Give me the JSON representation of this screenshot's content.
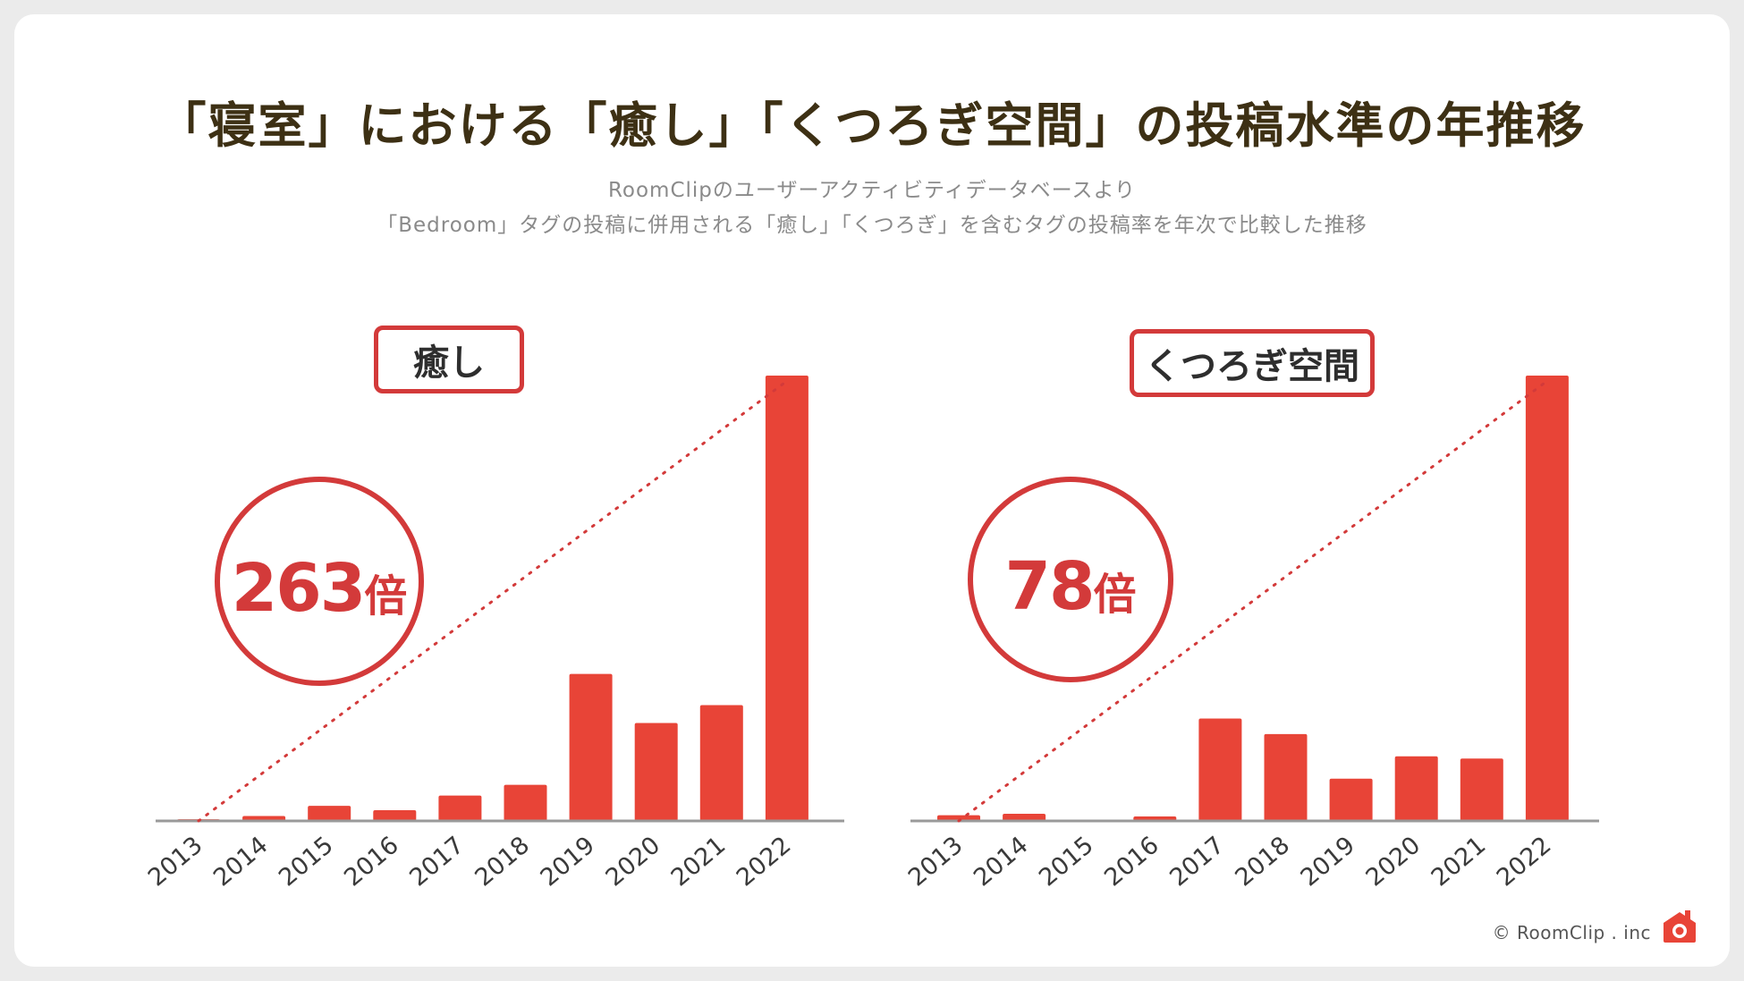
{
  "header": {
    "title": "「寝室」における「癒し」「くつろぎ空間」の投稿水準の年推移",
    "subtitle_line1": "RoomClipのユーザーアクティビティデータベースより",
    "subtitle_line2": "「Bedroom」タグの投稿に併用される「癒し」「くつろぎ」を含むタグの投稿率を年次で比較した推移"
  },
  "footer": {
    "copyright": "© RoomClip . inc"
  },
  "colors": {
    "bar": "#e84437",
    "accent": "#d33a3a",
    "title": "#3d3014",
    "axis": "#9a9a9a"
  },
  "chart_data": [
    {
      "type": "bar",
      "label": "癒し",
      "ratio_number": "263",
      "ratio_unit": "倍",
      "categories": [
        "2013",
        "2014",
        "2015",
        "2016",
        "2017",
        "2018",
        "2019",
        "2020",
        "2021",
        "2022"
      ],
      "values": [
        0.38,
        1.1,
        3.4,
        2.4,
        5.7,
        8.1,
        33,
        22,
        26,
        100
      ],
      "ylabel": "",
      "ylim": [
        0,
        100
      ],
      "trend_line": "dotted line from 2013 to 2022"
    },
    {
      "type": "bar",
      "label": "くつろぎ空間",
      "ratio_number": "78",
      "ratio_unit": "倍",
      "categories": [
        "2013",
        "2014",
        "2015",
        "2016",
        "2017",
        "2018",
        "2019",
        "2020",
        "2021",
        "2022"
      ],
      "values": [
        1.28,
        1.6,
        0,
        1.0,
        23,
        19.5,
        9.5,
        14.5,
        14,
        100
      ],
      "ylabel": "",
      "ylim": [
        0,
        100
      ],
      "trend_line": "dotted line from 2013 to 2022"
    }
  ]
}
